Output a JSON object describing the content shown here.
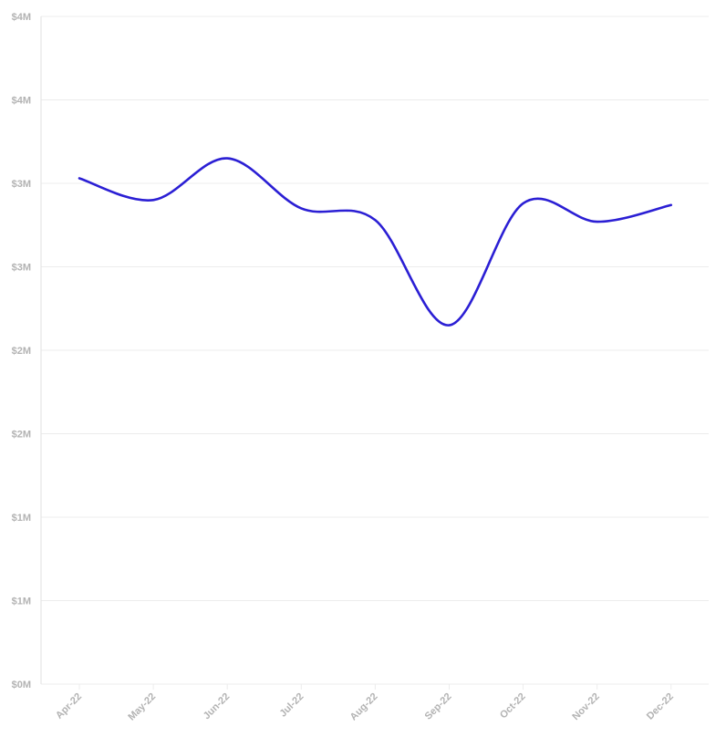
{
  "chart_data": {
    "type": "line",
    "title": "",
    "xlabel": "",
    "ylabel": "",
    "categories": [
      "Apr-22",
      "May-22",
      "Jun-22",
      "Jul-22",
      "Aug-22",
      "Sep-22",
      "Oct-22",
      "Nov-22",
      "Dec-22"
    ],
    "series": [
      {
        "values": [
          3.03,
          2.9,
          3.15,
          2.85,
          2.78,
          2.15,
          2.88,
          2.77,
          2.87
        ],
        "color": "#2b1fd4"
      }
    ],
    "ylim": [
      0,
      4
    ],
    "y_ticks": [
      0,
      0.5,
      1,
      1.5,
      2,
      2.5,
      3,
      3.5,
      4
    ],
    "y_tick_labels": [
      "$0M",
      "$1M",
      "$1M",
      "$2M",
      "$2M",
      "$3M",
      "$3M",
      "$4M",
      "$4M"
    ],
    "grid": true,
    "legend": "none"
  }
}
